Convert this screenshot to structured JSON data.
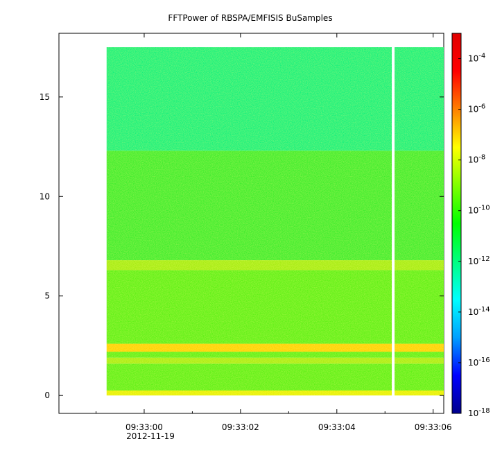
{
  "chart_data": {
    "type": "heatmap",
    "title": "FFTPower of RBSPA/EMFISIS  BuSamples",
    "xlabel": "",
    "ylabel": "",
    "date_label": "2012-11-19",
    "x_ticks": [
      {
        "t": 0,
        "label": "09:33:00"
      },
      {
        "t": 2,
        "label": "09:33:02"
      },
      {
        "t": 4,
        "label": "09:33:04"
      },
      {
        "t": 6,
        "label": "09:33:06"
      }
    ],
    "x_minor_ticks": [
      -1,
      1,
      3,
      5
    ],
    "xlim_seconds": [
      -1.77,
      6.22
    ],
    "data_xrange_seconds": [
      -0.78,
      6.22
    ],
    "gap_seconds": 5.17,
    "y_ticks": [
      0,
      5,
      10,
      15
    ],
    "ylim": [
      -0.9,
      18.2
    ],
    "data_yrange": [
      0,
      17.5
    ],
    "colorbar": {
      "scale": "log",
      "range": [
        1e-18,
        0.001
      ],
      "colors": [
        "#00008c",
        "#0000ff",
        "#00a0ff",
        "#00ffff",
        "#00ff80",
        "#00ff00",
        "#80ff00",
        "#ffff00",
        "#ff8000",
        "#ff0000",
        "#e00000"
      ],
      "ticks": [
        {
          "base": "10",
          "exp": "-18"
        },
        {
          "base": "10",
          "exp": "-16"
        },
        {
          "base": "10",
          "exp": "-14"
        },
        {
          "base": "10",
          "exp": "-12"
        },
        {
          "base": "10",
          "exp": "-10"
        },
        {
          "base": "10",
          "exp": "-8"
        },
        {
          "base": "10",
          "exp": "-6"
        },
        {
          "base": "10",
          "exp": "-4"
        }
      ]
    },
    "bands": [
      {
        "y0": 0.0,
        "y1": 0.25,
        "color": "#e8f000"
      },
      {
        "y0": 0.25,
        "y1": 1.6,
        "color": "#5cf014"
      },
      {
        "y0": 1.6,
        "y1": 1.9,
        "color": "#a8ec10"
      },
      {
        "y0": 1.9,
        "y1": 2.2,
        "color": "#5cf014"
      },
      {
        "y0": 2.2,
        "y1": 2.6,
        "color": "#ffd000"
      },
      {
        "y0": 2.6,
        "y1": 6.3,
        "color": "#5cf014"
      },
      {
        "y0": 6.3,
        "y1": 6.8,
        "color": "#a4ec10"
      },
      {
        "y0": 6.8,
        "y1": 12.3,
        "color": "#3cec2c"
      },
      {
        "y0": 12.3,
        "y1": 17.5,
        "color": "#14f07c"
      }
    ]
  }
}
